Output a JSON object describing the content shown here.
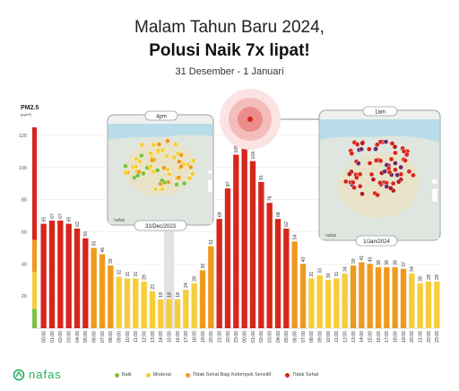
{
  "header": {
    "title_line1": "Malam Tahun Baru 2024,",
    "title_line2": "Polusi Naik 7x lipat!",
    "subtitle": "31 Desember - 1 Januari"
  },
  "brand": {
    "name": "nafas",
    "icon": "nafas-logo-icon"
  },
  "map_cards": [
    {
      "time_label": "4pm",
      "date_label": "31/Dec/2023",
      "logo": "nafas"
    },
    {
      "time_label": "1am",
      "date_label": "1/Jan/2024",
      "logo": "nafas"
    }
  ],
  "legend": [
    {
      "label": "Baik",
      "color": "#7cc243"
    },
    {
      "label": "Moderat",
      "color": "#f6ce3a"
    },
    {
      "label": "Tidak Sehat Bagi Kelompok Sensitif",
      "color": "#ef9a1f"
    },
    {
      "label": "Tidak Sehat",
      "color": "#d7261c"
    }
  ],
  "chart_data": {
    "type": "bar",
    "ylabel": "PM2.5",
    "yunit": "(µg/m³)",
    "ylim": [
      0,
      130
    ],
    "yticks": [
      20,
      40,
      60,
      80,
      100,
      120
    ],
    "scale_bar": [
      {
        "from": 0,
        "to": 12,
        "color": "#7cc243"
      },
      {
        "from": 12,
        "to": 35,
        "color": "#f6ce3a"
      },
      {
        "from": 35,
        "to": 55,
        "color": "#ef9a1f"
      },
      {
        "from": 55,
        "to": 125,
        "color": "#d7261c"
      }
    ],
    "categories": [
      "00:00",
      "01:00",
      "02:00",
      "03:00",
      "04:00",
      "05:00",
      "06:00",
      "07:00",
      "08:00",
      "09:00",
      "10:00",
      "11:00",
      "12:00",
      "13:00",
      "14:00",
      "15:00",
      "16:00",
      "17:00",
      "18:00",
      "19:00",
      "20:00",
      "21:00",
      "22:00",
      "23:00",
      "00:00",
      "01:00",
      "02:00",
      "03:00",
      "04:00",
      "05:00",
      "06:00",
      "07:00",
      "08:00",
      "09:00",
      "10:00",
      "11:00",
      "12:00",
      "13:00",
      "14:00",
      "15:00",
      "16:00",
      "17:00",
      "18:00",
      "19:00",
      "20:00",
      "21:00",
      "22:00",
      "23:00"
    ],
    "values": [
      65,
      67,
      67,
      65,
      62,
      56,
      50,
      46,
      39,
      32,
      31,
      31,
      29,
      23,
      18,
      18,
      18,
      24,
      28,
      36,
      51,
      68,
      87,
      108,
      118,
      104,
      91,
      78,
      68,
      62,
      54,
      40,
      31,
      33,
      30,
      31,
      34,
      39,
      41,
      40,
      38,
      38,
      38,
      37,
      34,
      28,
      29,
      29
    ],
    "colors": {
      "moderate": "#f6ce3a",
      "usg": "#ef9a1f",
      "unhealthy": "#d7261c"
    },
    "highlight_index": 15,
    "peak_index": 24
  }
}
